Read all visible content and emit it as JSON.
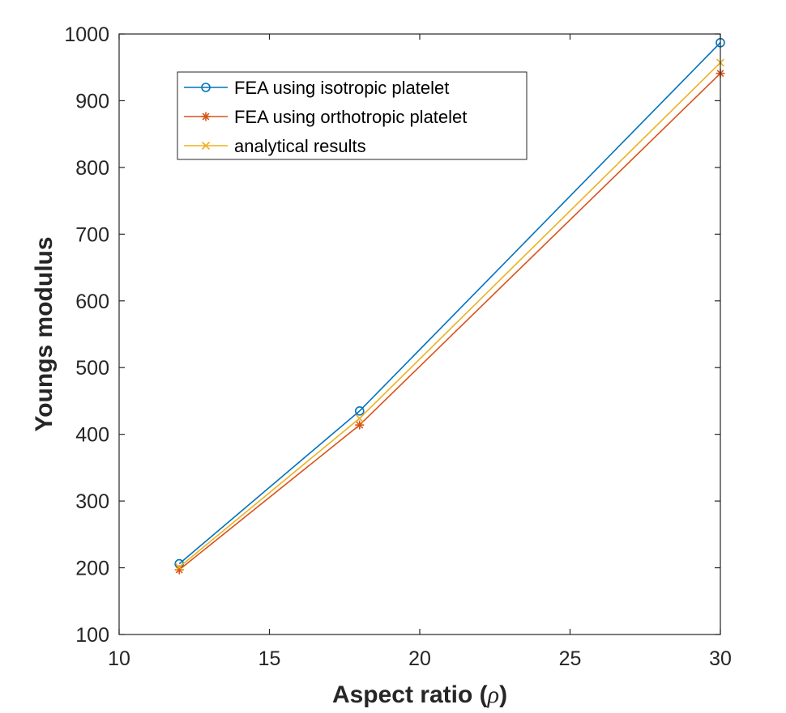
{
  "chart_data": {
    "type": "line",
    "xlabel_prefix": "Aspect ratio (",
    "xlabel_symbol": "ρ",
    "xlabel_suffix": ")",
    "ylabel": "Youngs modulus",
    "xlim": [
      10,
      30
    ],
    "ylim": [
      100,
      1000
    ],
    "xticks": [
      10,
      15,
      20,
      25,
      30
    ],
    "yticks": [
      100,
      200,
      300,
      400,
      500,
      600,
      700,
      800,
      900,
      1000
    ],
    "grid": false,
    "box": true,
    "legend_placement": "top-left",
    "x": [
      12,
      18,
      30
    ],
    "series": [
      {
        "name": "FEA using isotropic platelet",
        "values": [
          206,
          435,
          987
        ],
        "color": "#0072BD",
        "marker": "circle"
      },
      {
        "name": "FEA using orthotropic platelet",
        "values": [
          197,
          414,
          941
        ],
        "color": "#D95319",
        "marker": "asterisk"
      },
      {
        "name": "analytical results",
        "values": [
          201,
          424,
          957
        ],
        "color": "#EDB120",
        "marker": "cross"
      }
    ]
  }
}
